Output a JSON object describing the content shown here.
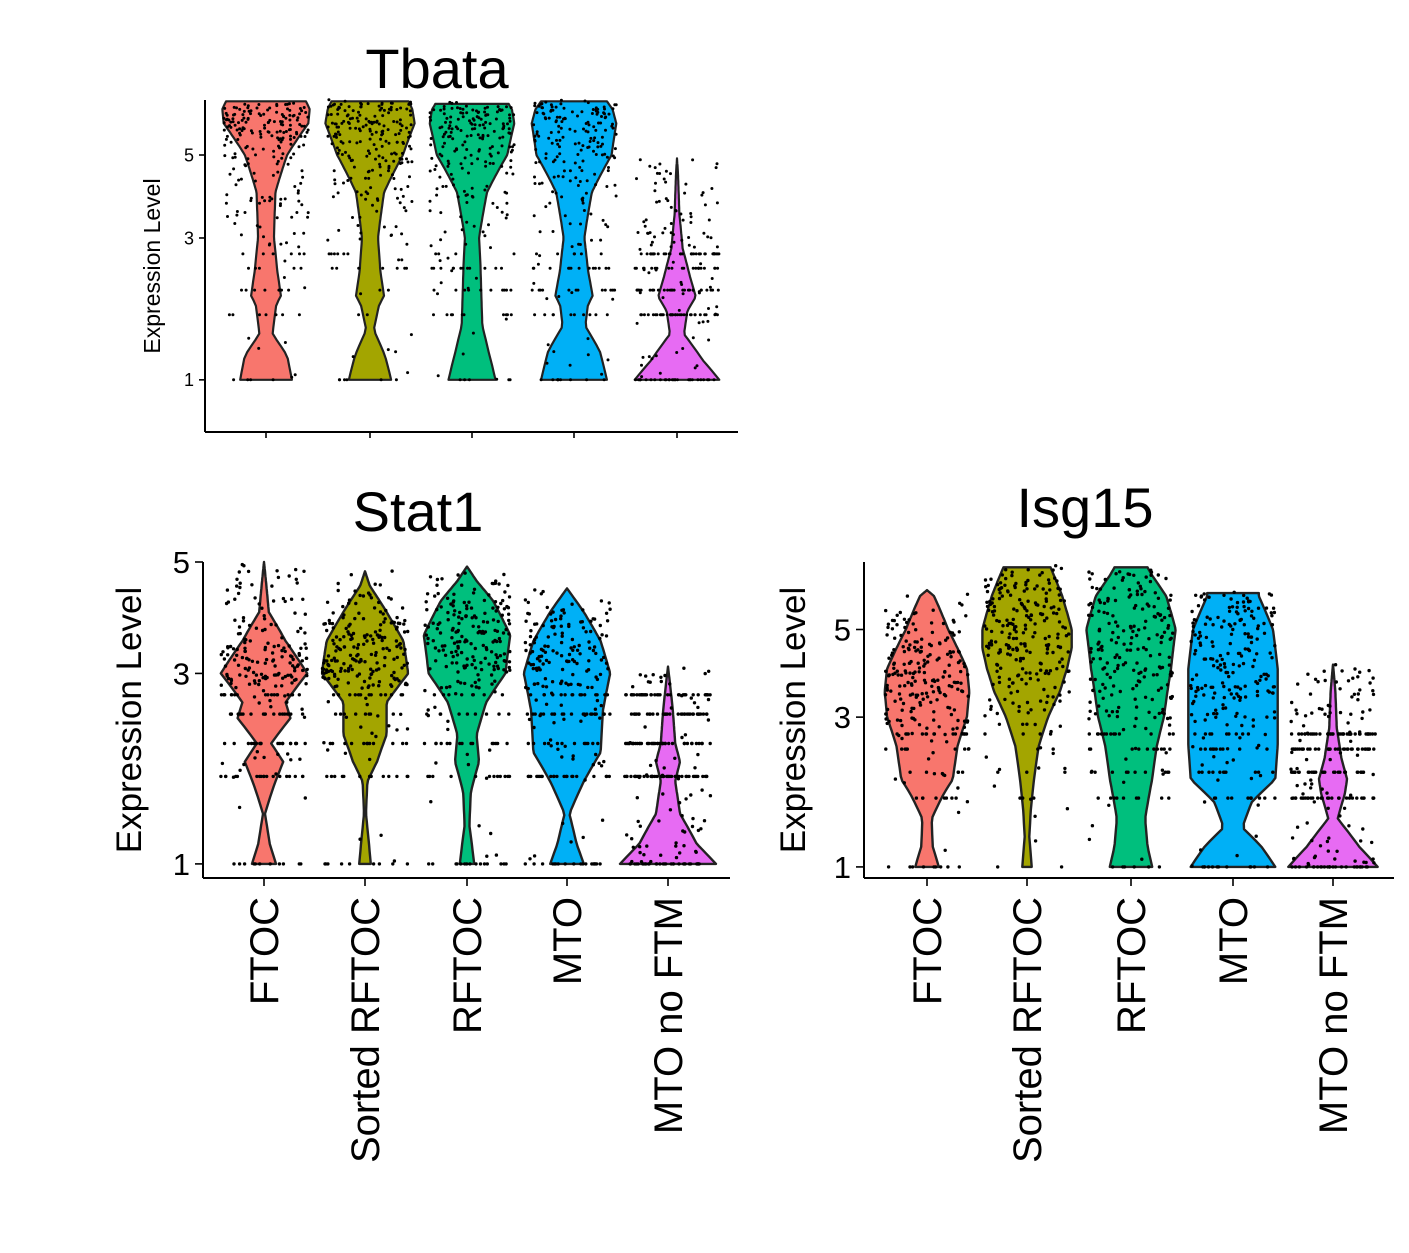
{
  "colors": {
    "FTOC": "#F8766D",
    "Sorted RFTOC": "#A3A500",
    "RFTOC": "#00BF7D",
    "MTO": "#00B0F6",
    "MTO no FTM": "#E76BF3"
  },
  "chart_data": [
    {
      "type": "violin",
      "title": "Tbata",
      "ylabel": "Expression Level",
      "categories": [
        "FTOC",
        "Sorted RFTOC",
        "RFTOC",
        "MTO",
        "MTO no FTM"
      ],
      "show_category_labels": false,
      "yticks": [
        1,
        3,
        5
      ],
      "ylim": [
        0.55,
        6.85
      ],
      "grid": false,
      "legend": "none",
      "series": [
        {
          "name": "FTOC",
          "max": 6.8,
          "profile": [
            [
              1.0,
              0.55
            ],
            [
              1.25,
              0.45
            ],
            [
              1.5,
              0.14
            ],
            [
              1.9,
              0.22
            ],
            [
              2.0,
              0.32
            ],
            [
              2.4,
              0.24
            ],
            [
              3.0,
              0.17
            ],
            [
              4.0,
              0.2
            ],
            [
              5.0,
              0.45
            ],
            [
              6.0,
              0.9
            ],
            [
              6.5,
              0.93
            ],
            [
              6.8,
              0.85
            ]
          ]
        },
        {
          "name": "Sorted RFTOC",
          "max": 6.8,
          "profile": [
            [
              1.0,
              0.45
            ],
            [
              1.25,
              0.32
            ],
            [
              1.55,
              0.08
            ],
            [
              1.9,
              0.2
            ],
            [
              2.0,
              0.3
            ],
            [
              2.4,
              0.22
            ],
            [
              3.0,
              0.17
            ],
            [
              4.0,
              0.3
            ],
            [
              5.0,
              0.7
            ],
            [
              6.0,
              0.95
            ],
            [
              6.5,
              0.9
            ],
            [
              6.8,
              0.82
            ]
          ]
        },
        {
          "name": "RFTOC",
          "max": 6.7,
          "profile": [
            [
              1.0,
              0.5
            ],
            [
              1.3,
              0.35
            ],
            [
              1.6,
              0.22
            ],
            [
              2.0,
              0.2
            ],
            [
              2.5,
              0.18
            ],
            [
              3.0,
              0.15
            ],
            [
              4.0,
              0.32
            ],
            [
              5.0,
              0.75
            ],
            [
              6.0,
              0.9
            ],
            [
              6.5,
              0.85
            ],
            [
              6.7,
              0.78
            ]
          ]
        },
        {
          "name": "MTO",
          "max": 6.8,
          "profile": [
            [
              1.0,
              0.7
            ],
            [
              1.3,
              0.55
            ],
            [
              1.6,
              0.24
            ],
            [
              1.9,
              0.3
            ],
            [
              2.0,
              0.4
            ],
            [
              2.4,
              0.3
            ],
            [
              3.0,
              0.22
            ],
            [
              4.0,
              0.38
            ],
            [
              5.0,
              0.8
            ],
            [
              6.0,
              0.9
            ],
            [
              6.5,
              0.82
            ],
            [
              6.8,
              0.7
            ]
          ]
        },
        {
          "name": "MTO no FTM",
          "max": 4.9,
          "profile": [
            [
              1.0,
              0.9
            ],
            [
              1.2,
              0.55
            ],
            [
              1.5,
              0.15
            ],
            [
              1.8,
              0.22
            ],
            [
              2.0,
              0.4
            ],
            [
              2.3,
              0.28
            ],
            [
              2.8,
              0.12
            ],
            [
              3.5,
              0.05
            ],
            [
              4.5,
              0.02
            ],
            [
              4.9,
              0.0
            ]
          ]
        }
      ]
    },
    {
      "type": "violin",
      "title": "Stat1",
      "ylabel": "Expression Level",
      "categories": [
        "FTOC",
        "Sorted RFTOC",
        "RFTOC",
        "MTO",
        "MTO no FTM"
      ],
      "show_category_labels": true,
      "yticks": [
        1,
        3,
        5
      ],
      "ylim": [
        0.9,
        5.0
      ],
      "grid": false,
      "legend": "none",
      "series": [
        {
          "name": "FTOC",
          "max": 5.0,
          "profile": [
            [
              1.0,
              0.25
            ],
            [
              1.15,
              0.12
            ],
            [
              1.4,
              0.02
            ],
            [
              1.65,
              0.2
            ],
            [
              1.9,
              0.4
            ],
            [
              2.1,
              0.15
            ],
            [
              2.4,
              0.55
            ],
            [
              2.6,
              0.45
            ],
            [
              3.0,
              0.9
            ],
            [
              3.5,
              0.45
            ],
            [
              4.0,
              0.1
            ],
            [
              4.5,
              0.05
            ],
            [
              5.0,
              0.0
            ]
          ]
        },
        {
          "name": "Sorted RFTOC",
          "max": 4.8,
          "profile": [
            [
              1.0,
              0.12
            ],
            [
              1.4,
              0.02
            ],
            [
              1.7,
              0.05
            ],
            [
              1.9,
              0.25
            ],
            [
              2.2,
              0.45
            ],
            [
              2.6,
              0.45
            ],
            [
              3.0,
              0.9
            ],
            [
              3.5,
              0.8
            ],
            [
              4.0,
              0.45
            ],
            [
              4.5,
              0.1
            ],
            [
              4.8,
              0.0
            ]
          ]
        },
        {
          "name": "RFTOC",
          "max": 4.9,
          "profile": [
            [
              1.0,
              0.15
            ],
            [
              1.3,
              0.05
            ],
            [
              1.6,
              0.08
            ],
            [
              1.9,
              0.25
            ],
            [
              2.2,
              0.2
            ],
            [
              2.6,
              0.4
            ],
            [
              3.0,
              0.8
            ],
            [
              3.6,
              0.9
            ],
            [
              4.2,
              0.55
            ],
            [
              4.6,
              0.2
            ],
            [
              4.9,
              0.0
            ]
          ]
        },
        {
          "name": "MTO",
          "max": 4.45,
          "profile": [
            [
              1.0,
              0.35
            ],
            [
              1.15,
              0.2
            ],
            [
              1.4,
              0.05
            ],
            [
              1.7,
              0.35
            ],
            [
              2.0,
              0.7
            ],
            [
              2.5,
              0.75
            ],
            [
              3.0,
              0.9
            ],
            [
              3.5,
              0.7
            ],
            [
              4.0,
              0.35
            ],
            [
              4.45,
              0.0
            ]
          ]
        },
        {
          "name": "MTO no FTM",
          "max": 3.1,
          "profile": [
            [
              1.0,
              1.0
            ],
            [
              1.15,
              0.6
            ],
            [
              1.4,
              0.25
            ],
            [
              1.7,
              0.15
            ],
            [
              1.9,
              0.25
            ],
            [
              2.1,
              0.15
            ],
            [
              2.5,
              0.1
            ],
            [
              2.8,
              0.05
            ],
            [
              3.1,
              0.0
            ]
          ]
        }
      ]
    },
    {
      "type": "violin",
      "title": "Isg15",
      "ylabel": "Expression Level",
      "categories": [
        "FTOC",
        "Sorted RFTOC",
        "RFTOC",
        "MTO",
        "MTO no FTM"
      ],
      "show_category_labels": true,
      "yticks": [
        1,
        3,
        5
      ],
      "ylim": [
        0.9,
        7.2
      ],
      "grid": false,
      "legend": "none",
      "series": [
        {
          "name": "FTOC",
          "max": 6.2,
          "profile": [
            [
              1.0,
              0.25
            ],
            [
              1.2,
              0.12
            ],
            [
              1.5,
              0.1
            ],
            [
              1.8,
              0.35
            ],
            [
              2.0,
              0.55
            ],
            [
              2.5,
              0.65
            ],
            [
              3.0,
              0.85
            ],
            [
              3.5,
              0.9
            ],
            [
              4.0,
              0.85
            ],
            [
              5.0,
              0.45
            ],
            [
              6.0,
              0.15
            ],
            [
              6.2,
              0.0
            ]
          ]
        },
        {
          "name": "Sorted RFTOC",
          "max": 7.0,
          "profile": [
            [
              1.0,
              0.1
            ],
            [
              1.3,
              0.05
            ],
            [
              1.6,
              0.08
            ],
            [
              2.0,
              0.15
            ],
            [
              2.5,
              0.25
            ],
            [
              3.0,
              0.45
            ],
            [
              3.5,
              0.7
            ],
            [
              4.0,
              0.85
            ],
            [
              4.5,
              0.95
            ],
            [
              5.0,
              0.95
            ],
            [
              6.0,
              0.75
            ],
            [
              7.0,
              0.5
            ]
          ]
        },
        {
          "name": "RFTOC",
          "max": 7.0,
          "profile": [
            [
              1.0,
              0.45
            ],
            [
              1.2,
              0.35
            ],
            [
              1.5,
              0.3
            ],
            [
              2.0,
              0.45
            ],
            [
              2.5,
              0.55
            ],
            [
              3.0,
              0.7
            ],
            [
              4.0,
              0.85
            ],
            [
              5.0,
              0.95
            ],
            [
              6.0,
              0.75
            ],
            [
              6.7,
              0.45
            ],
            [
              7.0,
              0.35
            ]
          ]
        },
        {
          "name": "MTO",
          "max": 6.1,
          "profile": [
            [
              1.0,
              0.9
            ],
            [
              1.2,
              0.6
            ],
            [
              1.4,
              0.2
            ],
            [
              1.7,
              0.4
            ],
            [
              2.0,
              0.9
            ],
            [
              2.5,
              0.95
            ],
            [
              3.0,
              0.95
            ],
            [
              4.0,
              0.95
            ],
            [
              5.0,
              0.85
            ],
            [
              6.0,
              0.55
            ],
            [
              6.1,
              0.55
            ]
          ]
        },
        {
          "name": "MTO no FTM",
          "max": 4.1,
          "profile": [
            [
              1.0,
              0.95
            ],
            [
              1.2,
              0.55
            ],
            [
              1.5,
              0.1
            ],
            [
              1.8,
              0.25
            ],
            [
              2.0,
              0.3
            ],
            [
              2.3,
              0.18
            ],
            [
              2.8,
              0.08
            ],
            [
              3.5,
              0.05
            ],
            [
              4.1,
              0.0
            ]
          ]
        }
      ]
    }
  ]
}
